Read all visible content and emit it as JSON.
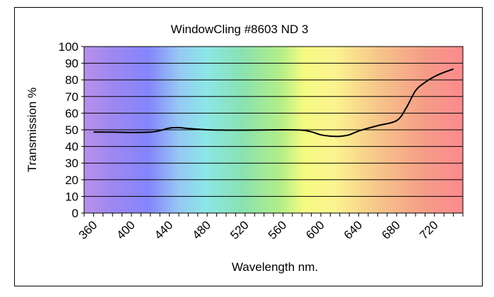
{
  "chart_data": {
    "type": "line",
    "title": "WindowCling #8603 ND 3",
    "xlabel": "Wavelength nm.",
    "ylabel": "Transmission %",
    "xlim": [
      350,
      750
    ],
    "ylim": [
      0,
      100
    ],
    "x_ticks": [
      360,
      400,
      440,
      480,
      520,
      560,
      600,
      640,
      680,
      720
    ],
    "y_ticks": [
      0,
      10,
      20,
      30,
      40,
      50,
      60,
      70,
      80,
      90,
      100
    ],
    "grid": true,
    "legend": "none",
    "background": "visible-spectrum gradient",
    "line_color": "#000000",
    "series": [
      {
        "x": [
          360,
          380,
          400,
          420,
          430,
          440,
          450,
          460,
          480,
          500,
          520,
          540,
          560,
          580,
          590,
          600,
          610,
          620,
          630,
          640,
          660,
          680,
          690,
          700,
          710,
          720,
          730,
          740
        ],
        "values": [
          48.7,
          48.6,
          48.4,
          48.6,
          49.5,
          51.0,
          51.3,
          50.8,
          50.0,
          49.8,
          49.8,
          49.9,
          50.0,
          49.8,
          48.8,
          47.0,
          46.2,
          46.1,
          47.0,
          49.3,
          52.5,
          55.5,
          63.0,
          73.5,
          78.5,
          82.0,
          84.5,
          86.5
        ]
      }
    ]
  }
}
